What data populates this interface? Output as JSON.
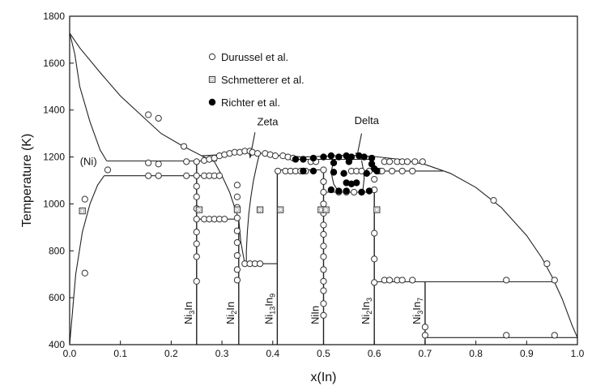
{
  "chart_data": {
    "type": "scatter",
    "xlabel": "x(In)",
    "ylabel": "Temperature (K)",
    "xlim": [
      0.0,
      1.0
    ],
    "ylim": [
      400,
      1800
    ],
    "x_ticks": [
      "0.0",
      "0.1",
      "0.2",
      "0.3",
      "0.4",
      "0.5",
      "0.6",
      "0.7",
      "0.8",
      "0.9",
      "1.0"
    ],
    "y_ticks": [
      "400",
      "600",
      "800",
      "1000",
      "1200",
      "1400",
      "1600",
      "1800"
    ],
    "grid": false,
    "legend_position": "top-center",
    "annotations": [
      {
        "text": "(Ni)",
        "x": 0.037,
        "y": 1165
      },
      {
        "text": "Zeta",
        "x": 0.39,
        "y": 1335
      },
      {
        "text": "Delta",
        "x": 0.585,
        "y": 1340
      }
    ],
    "compound_labels": [
      {
        "base": "Ni",
        "sub1": "3",
        "mid": "In",
        "sub2": "",
        "x": 0.25
      },
      {
        "base": "Ni",
        "sub1": "2",
        "mid": "In",
        "sub2": "",
        "x": 0.333
      },
      {
        "base": "Ni",
        "sub1": "13",
        "mid": "In",
        "sub2": "9",
        "x": 0.409
      },
      {
        "base": "Ni",
        "sub1": "",
        "mid": "In",
        "sub2": "",
        "x": 0.5
      },
      {
        "base": "Ni",
        "sub1": "2",
        "mid": "In",
        "sub2": "3",
        "x": 0.6
      },
      {
        "base": "Ni",
        "sub1": "3",
        "mid": "In",
        "sub2": "7",
        "x": 0.7
      }
    ],
    "series": [
      {
        "name": "Durussel et al.",
        "marker": "open-circle",
        "points": [
          [
            0.03,
            1020
          ],
          [
            0.03,
            705
          ],
          [
            0.075,
            1145
          ],
          [
            0.155,
            1380
          ],
          [
            0.175,
            1365
          ],
          [
            0.155,
            1175
          ],
          [
            0.175,
            1170
          ],
          [
            0.155,
            1120
          ],
          [
            0.175,
            1120
          ],
          [
            0.225,
            1245
          ],
          [
            0.23,
            1180
          ],
          [
            0.23,
            1120
          ],
          [
            0.25,
            1180
          ],
          [
            0.25,
            1120
          ],
          [
            0.25,
            1075
          ],
          [
            0.25,
            1030
          ],
          [
            0.25,
            980
          ],
          [
            0.25,
            935
          ],
          [
            0.25,
            880
          ],
          [
            0.25,
            830
          ],
          [
            0.25,
            775
          ],
          [
            0.25,
            670
          ],
          [
            0.265,
            1185
          ],
          [
            0.275,
            1190
          ],
          [
            0.285,
            1195
          ],
          [
            0.295,
            1205
          ],
          [
            0.305,
            1210
          ],
          [
            0.315,
            1215
          ],
          [
            0.325,
            1220
          ],
          [
            0.335,
            1220
          ],
          [
            0.345,
            1225
          ],
          [
            0.355,
            1225
          ],
          [
            0.36,
            1220
          ],
          [
            0.37,
            1215
          ],
          [
            0.265,
            1120
          ],
          [
            0.275,
            1120
          ],
          [
            0.285,
            1120
          ],
          [
            0.295,
            1120
          ],
          [
            0.265,
            935
          ],
          [
            0.275,
            935
          ],
          [
            0.285,
            935
          ],
          [
            0.295,
            935
          ],
          [
            0.305,
            935
          ],
          [
            0.33,
            1080
          ],
          [
            0.33,
            1030
          ],
          [
            0.33,
            985
          ],
          [
            0.33,
            940
          ],
          [
            0.33,
            885
          ],
          [
            0.33,
            835
          ],
          [
            0.33,
            780
          ],
          [
            0.33,
            720
          ],
          [
            0.33,
            675
          ],
          [
            0.345,
            745
          ],
          [
            0.355,
            745
          ],
          [
            0.365,
            745
          ],
          [
            0.375,
            745
          ],
          [
            0.385,
            1215
          ],
          [
            0.395,
            1210
          ],
          [
            0.405,
            1205
          ],
          [
            0.42,
            1205
          ],
          [
            0.43,
            1200
          ],
          [
            0.44,
            1195
          ],
          [
            0.41,
            1140
          ],
          [
            0.425,
            1140
          ],
          [
            0.435,
            1140
          ],
          [
            0.445,
            1140
          ],
          [
            0.455,
            1140
          ],
          [
            0.465,
            1140
          ],
          [
            0.475,
            1180
          ],
          [
            0.485,
            1180
          ],
          [
            0.5,
            1145
          ],
          [
            0.5,
            1095
          ],
          [
            0.5,
            1050
          ],
          [
            0.5,
            1000
          ],
          [
            0.5,
            960
          ],
          [
            0.5,
            910
          ],
          [
            0.5,
            870
          ],
          [
            0.5,
            820
          ],
          [
            0.5,
            775
          ],
          [
            0.5,
            720
          ],
          [
            0.5,
            670
          ],
          [
            0.5,
            630
          ],
          [
            0.5,
            575
          ],
          [
            0.5,
            525
          ],
          [
            0.53,
            1050
          ],
          [
            0.545,
            1050
          ],
          [
            0.56,
            1050
          ],
          [
            0.575,
            1050
          ],
          [
            0.555,
            1140
          ],
          [
            0.565,
            1140
          ],
          [
            0.575,
            1140
          ],
          [
            0.59,
            1140
          ],
          [
            0.6,
            1105
          ],
          [
            0.6,
            1060
          ],
          [
            0.6,
            875
          ],
          [
            0.6,
            765
          ],
          [
            0.6,
            665
          ],
          [
            0.61,
            1140
          ],
          [
            0.62,
            1180
          ],
          [
            0.63,
            1180
          ],
          [
            0.645,
            1180
          ],
          [
            0.655,
            1180
          ],
          [
            0.665,
            1180
          ],
          [
            0.68,
            1180
          ],
          [
            0.695,
            1180
          ],
          [
            0.615,
            1140
          ],
          [
            0.635,
            1140
          ],
          [
            0.655,
            1140
          ],
          [
            0.675,
            1140
          ],
          [
            0.62,
            675
          ],
          [
            0.63,
            675
          ],
          [
            0.645,
            675
          ],
          [
            0.655,
            675
          ],
          [
            0.675,
            675
          ],
          [
            0.7,
            475
          ],
          [
            0.7,
            440
          ],
          [
            0.835,
            1015
          ],
          [
            0.86,
            675
          ],
          [
            0.86,
            440
          ],
          [
            0.94,
            745
          ],
          [
            0.955,
            675
          ],
          [
            0.955,
            440
          ]
        ]
      },
      {
        "name": "Schmetterer et al.",
        "marker": "dotted-square",
        "points": [
          [
            0.025,
            970
          ],
          [
            0.255,
            975
          ],
          [
            0.33,
            975
          ],
          [
            0.375,
            975
          ],
          [
            0.415,
            975
          ],
          [
            0.495,
            975
          ],
          [
            0.505,
            975
          ],
          [
            0.605,
            975
          ]
        ]
      },
      {
        "name": "Richter et al.",
        "marker": "filled-circle",
        "points": [
          [
            0.445,
            1190
          ],
          [
            0.46,
            1190
          ],
          [
            0.48,
            1195
          ],
          [
            0.5,
            1200
          ],
          [
            0.515,
            1205
          ],
          [
            0.53,
            1200
          ],
          [
            0.545,
            1205
          ],
          [
            0.555,
            1200
          ],
          [
            0.57,
            1205
          ],
          [
            0.58,
            1200
          ],
          [
            0.595,
            1195
          ],
          [
            0.52,
            1175
          ],
          [
            0.55,
            1180
          ],
          [
            0.46,
            1140
          ],
          [
            0.48,
            1140
          ],
          [
            0.52,
            1135
          ],
          [
            0.54,
            1130
          ],
          [
            0.585,
            1130
          ],
          [
            0.545,
            1090
          ],
          [
            0.555,
            1085
          ],
          [
            0.565,
            1090
          ],
          [
            0.515,
            1060
          ],
          [
            0.53,
            1055
          ],
          [
            0.545,
            1055
          ],
          [
            0.575,
            1050
          ],
          [
            0.59,
            1055
          ],
          [
            0.595,
            1170
          ],
          [
            0.6,
            1150
          ],
          [
            0.605,
            1140
          ]
        ]
      }
    ],
    "lines": [
      {
        "role": "liquidus",
        "points": [
          [
            0.0,
            1728
          ],
          [
            0.02,
            1665
          ],
          [
            0.06,
            1560
          ],
          [
            0.1,
            1460
          ],
          [
            0.14,
            1380
          ],
          [
            0.18,
            1300
          ],
          [
            0.22,
            1250
          ],
          [
            0.26,
            1205
          ],
          [
            0.3,
            1210
          ],
          [
            0.34,
            1218
          ],
          [
            0.36,
            1222
          ],
          [
            0.4,
            1208
          ],
          [
            0.46,
            1200
          ],
          [
            0.5,
            1203
          ],
          [
            0.55,
            1208
          ],
          [
            0.6,
            1202
          ],
          [
            0.65,
            1190
          ],
          [
            0.7,
            1168
          ],
          [
            0.75,
            1130
          ],
          [
            0.8,
            1070
          ],
          [
            0.85,
            985
          ],
          [
            0.9,
            865
          ],
          [
            0.93,
            770
          ],
          [
            0.95,
            690
          ],
          [
            0.97,
            595
          ],
          [
            0.99,
            480
          ],
          [
            1.0,
            430
          ]
        ]
      },
      {
        "role": "solvus-upper",
        "points": [
          [
            0.0,
            1728
          ],
          [
            0.01,
            1640
          ],
          [
            0.02,
            1500
          ],
          [
            0.04,
            1350
          ],
          [
            0.06,
            1230
          ],
          [
            0.073,
            1183
          ]
        ]
      },
      {
        "role": "solvus-lower",
        "points": [
          [
            0.0,
            400
          ],
          [
            0.012,
            700
          ],
          [
            0.025,
            880
          ],
          [
            0.04,
            1000
          ],
          [
            0.055,
            1080
          ],
          [
            0.068,
            1120
          ]
        ]
      },
      {
        "role": "eutectic",
        "points": [
          [
            0.073,
            1183
          ],
          [
            0.29,
            1183
          ]
        ]
      },
      {
        "role": "tie-line",
        "points": [
          [
            0.068,
            1120
          ],
          [
            0.3,
            1120
          ]
        ]
      },
      {
        "role": "zeta-left",
        "points": [
          [
            0.26,
            1205
          ],
          [
            0.285,
            1180
          ],
          [
            0.3,
            1120
          ],
          [
            0.315,
            1050
          ],
          [
            0.325,
            985
          ],
          [
            0.333,
            935
          ],
          [
            0.337,
            840
          ],
          [
            0.342,
            780
          ],
          [
            0.345,
            745
          ]
        ]
      },
      {
        "role": "zeta-right",
        "points": [
          [
            0.375,
            1222
          ],
          [
            0.37,
            1180
          ],
          [
            0.362,
            1100
          ],
          [
            0.357,
            1030
          ],
          [
            0.353,
            960
          ],
          [
            0.35,
            880
          ],
          [
            0.348,
            800
          ],
          [
            0.348,
            745
          ]
        ]
      },
      {
        "role": "zeta-bottom",
        "points": [
          [
            0.345,
            745
          ],
          [
            0.409,
            745
          ]
        ]
      },
      {
        "role": "ni3in-ni2in",
        "points": [
          [
            0.25,
            935
          ],
          [
            0.333,
            935
          ]
        ]
      },
      {
        "role": "peritectic",
        "points": [
          [
            0.409,
            1145
          ],
          [
            0.5,
            1145
          ]
        ]
      },
      {
        "role": "delta-top",
        "points": [
          [
            0.45,
            1190
          ],
          [
            0.6,
            1190
          ]
        ]
      },
      {
        "role": "delta-left",
        "points": [
          [
            0.52,
            1185
          ],
          [
            0.515,
            1135
          ],
          [
            0.52,
            1085
          ],
          [
            0.53,
            1050
          ]
        ]
      },
      {
        "role": "delta-right",
        "points": [
          [
            0.575,
            1185
          ],
          [
            0.578,
            1150
          ],
          [
            0.58,
            1110
          ],
          [
            0.577,
            1050
          ]
        ]
      },
      {
        "role": "delta-bottom",
        "points": [
          [
            0.5,
            1050
          ],
          [
            0.6,
            1050
          ]
        ]
      },
      {
        "role": "ni2in3-peritectic",
        "points": [
          [
            0.6,
            1140
          ],
          [
            0.735,
            1140
          ]
        ]
      },
      {
        "role": "ni3in7-peritectic",
        "points": [
          [
            0.6,
            668
          ],
          [
            0.955,
            668
          ]
        ]
      },
      {
        "role": "indium-eutectic",
        "points": [
          [
            0.7,
            430
          ],
          [
            1.0,
            430
          ]
        ]
      },
      {
        "role": "compound-Ni3In",
        "points": [
          [
            0.25,
            1180
          ],
          [
            0.25,
            400
          ]
        ]
      },
      {
        "role": "compound-Ni2In",
        "points": [
          [
            0.333,
            935
          ],
          [
            0.333,
            400
          ]
        ]
      },
      {
        "role": "compound-Ni13In9",
        "points": [
          [
            0.409,
            1145
          ],
          [
            0.409,
            400
          ]
        ]
      },
      {
        "role": "compound-NiIn",
        "points": [
          [
            0.5,
            1145
          ],
          [
            0.5,
            400
          ]
        ]
      },
      {
        "role": "compound-Ni2In3",
        "points": [
          [
            0.6,
            1050
          ],
          [
            0.6,
            400
          ]
        ]
      },
      {
        "role": "compound-Ni3In7",
        "points": [
          [
            0.7,
            668
          ],
          [
            0.7,
            400
          ]
        ]
      },
      {
        "role": "zeta-arrow",
        "points": [
          [
            0.365,
            1305
          ],
          [
            0.355,
            1195
          ]
        ]
      },
      {
        "role": "delta-arrow",
        "points": [
          [
            0.575,
            1300
          ],
          [
            0.565,
            1195
          ]
        ]
      }
    ]
  }
}
